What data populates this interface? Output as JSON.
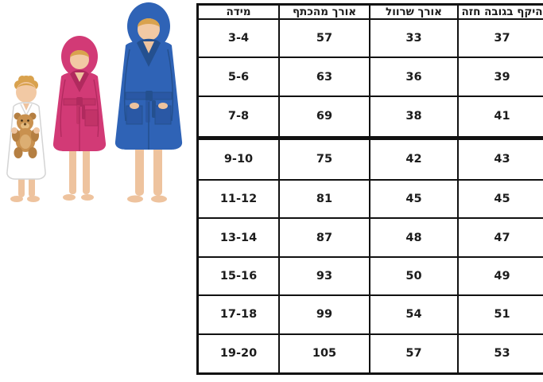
{
  "chart_data": {
    "type": "table",
    "columns": [
      "מידה",
      "אורך מהכתף",
      "אורך שרוול",
      "היקף בגובה חזה"
    ],
    "rows": [
      [
        "3-4",
        "57",
        "33",
        "37"
      ],
      [
        "5-6",
        "63",
        "36",
        "39"
      ],
      [
        "7-8",
        "69",
        "38",
        "41"
      ],
      [
        "9-10",
        "75",
        "42",
        "43"
      ],
      [
        "11-12",
        "81",
        "45",
        "45"
      ],
      [
        "13-14",
        "87",
        "48",
        "47"
      ],
      [
        "15-16",
        "93",
        "50",
        "49"
      ],
      [
        "17-18",
        "99",
        "54",
        "51"
      ],
      [
        "19-20",
        "105",
        "57",
        "53"
      ]
    ],
    "thick_border_above_row_index": 3,
    "legend_position": "none",
    "grid": true
  },
  "illustration": {
    "description": "three children wearing hooded terry bathrobes",
    "figures": [
      {
        "name": "toddler-white-robe",
        "robe_color": "#ffffff",
        "holding": "teddy-bear"
      },
      {
        "name": "girl-pink-robe",
        "robe_color": "#d23a76"
      },
      {
        "name": "boy-blue-robe",
        "robe_color": "#2f63b6"
      }
    ]
  },
  "colors": {
    "background": "#ffffff",
    "table_border": "#111111",
    "table_text": "#1c1c1c",
    "teddy_bear": "#c9914f",
    "skin": "#f2c9a4",
    "hair_blonde": "#d9a24e"
  }
}
